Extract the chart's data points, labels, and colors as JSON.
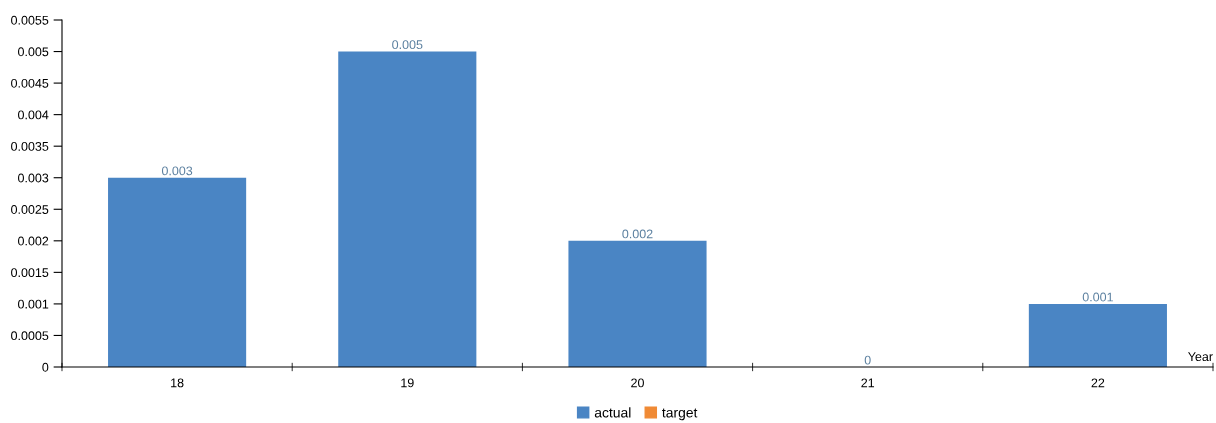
{
  "chart_data": {
    "type": "bar",
    "xlabel": "Year",
    "categories": [
      "18",
      "19",
      "20",
      "21",
      "22"
    ],
    "series": [
      {
        "name": "actual",
        "color": "#4a85c4",
        "values": [
          0.003,
          0.005,
          0.002,
          0,
          0.001
        ]
      },
      {
        "name": "target",
        "color": "#f08a35",
        "values": [
          null,
          null,
          null,
          null,
          null
        ]
      }
    ],
    "ylim": [
      0,
      0.0055
    ],
    "yticks": [
      0,
      0.0005,
      0.001,
      0.0015,
      0.002,
      0.0025,
      0.003,
      0.0035,
      0.004,
      0.0045,
      0.005,
      0.0055
    ],
    "data_labels": true,
    "grid": false,
    "legend": "bottom"
  }
}
